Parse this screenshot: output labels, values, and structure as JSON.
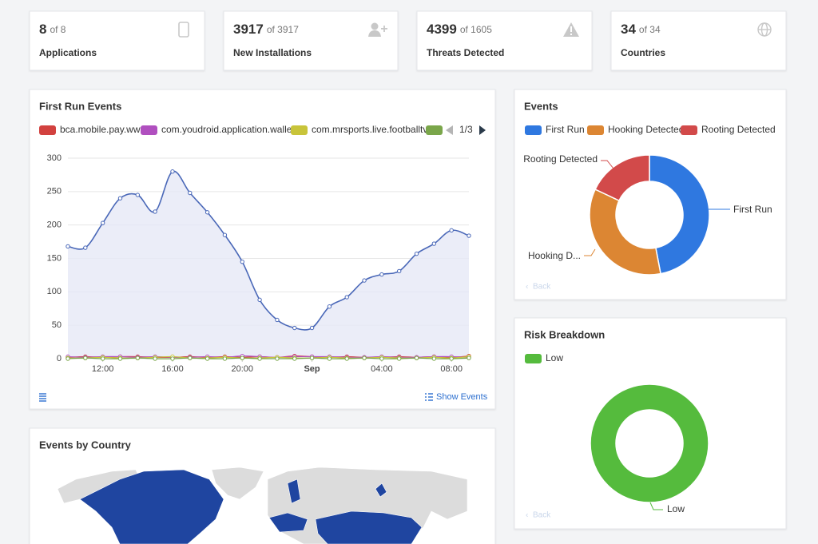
{
  "stats": [
    {
      "value": 8,
      "of_label": "of 8",
      "label": "Applications"
    },
    {
      "value": 3917,
      "of_label": "of 3917",
      "label": "New Installations"
    },
    {
      "value": 4399,
      "of_label": "of 1605",
      "label": "Threats Detected"
    },
    {
      "value": 34,
      "of_label": "of 34",
      "label": "Countries"
    }
  ],
  "first_run": {
    "type": "line",
    "title": "First Run Events",
    "legend_page": "1/3",
    "show_events": "Show Events",
    "categories": [
      null,
      null,
      "12:00",
      null,
      null,
      null,
      "16:00",
      null,
      null,
      null,
      "20:00",
      null,
      null,
      null,
      "Sep",
      null,
      null,
      null,
      "04:00",
      null,
      null,
      null,
      "08:00",
      null
    ],
    "series": [
      {
        "name": null,
        "color": "#4a68b8",
        "values": [
          168,
          166,
          203,
          240,
          245,
          220,
          280,
          248,
          219,
          185,
          145,
          88,
          58,
          46,
          46,
          78,
          92,
          117,
          126,
          131,
          157,
          172,
          192,
          184
        ]
      },
      {
        "name": "bca.mobile.pay.ww",
        "color": "#d2413f",
        "values": [
          2,
          3,
          2,
          3,
          3,
          2,
          2,
          3,
          2,
          3,
          2,
          3,
          2,
          4,
          3,
          2,
          3,
          2,
          2,
          3,
          2,
          3,
          2,
          4
        ]
      },
      {
        "name": "com.youdroid.application.wallet",
        "color": "#b04fbf",
        "values": [
          3,
          2,
          3,
          3,
          2,
          3,
          2,
          2,
          3,
          2,
          4,
          3,
          2,
          3,
          3,
          3,
          2,
          2,
          3,
          2,
          2,
          3,
          3,
          2
        ]
      },
      {
        "name": "com.mrsports.live.footballtv",
        "color": "#c8c43a",
        "values": [
          1,
          1,
          2,
          1,
          1,
          2,
          3,
          1,
          1,
          2,
          1,
          1,
          2,
          1,
          1,
          2,
          1,
          1,
          2,
          1,
          1,
          2,
          1,
          3
        ]
      },
      {
        "name": null,
        "color": "#7aa64a",
        "values": [
          0,
          1,
          0,
          0,
          1,
          0,
          0,
          1,
          0,
          0,
          1,
          0,
          0,
          0,
          1,
          0,
          0,
          1,
          0,
          0,
          1,
          0,
          0,
          1
        ]
      }
    ],
    "ylim": [
      0,
      300
    ],
    "yticks": [
      0,
      50,
      100,
      150,
      200,
      250,
      300
    ],
    "grid": true
  },
  "events": {
    "type": "pie",
    "title": "Events",
    "back": "Back",
    "categories": [
      "First Run",
      "Hooking Detected",
      "Rooting Detected"
    ],
    "slice_labels": [
      "First Run",
      "Hooking D...",
      "Rooting Detected"
    ],
    "values": [
      47,
      35,
      18
    ],
    "colors": [
      "#2f78e0",
      "#dc8633",
      "#d24a4a"
    ]
  },
  "risk": {
    "type": "pie",
    "title": "Risk Breakdown",
    "back": "Back",
    "categories": [
      "Low"
    ],
    "slice_labels": [
      "Low"
    ],
    "values": [
      100
    ],
    "colors": [
      "#55bb3d"
    ]
  },
  "map": {
    "title": "Events by Country"
  }
}
